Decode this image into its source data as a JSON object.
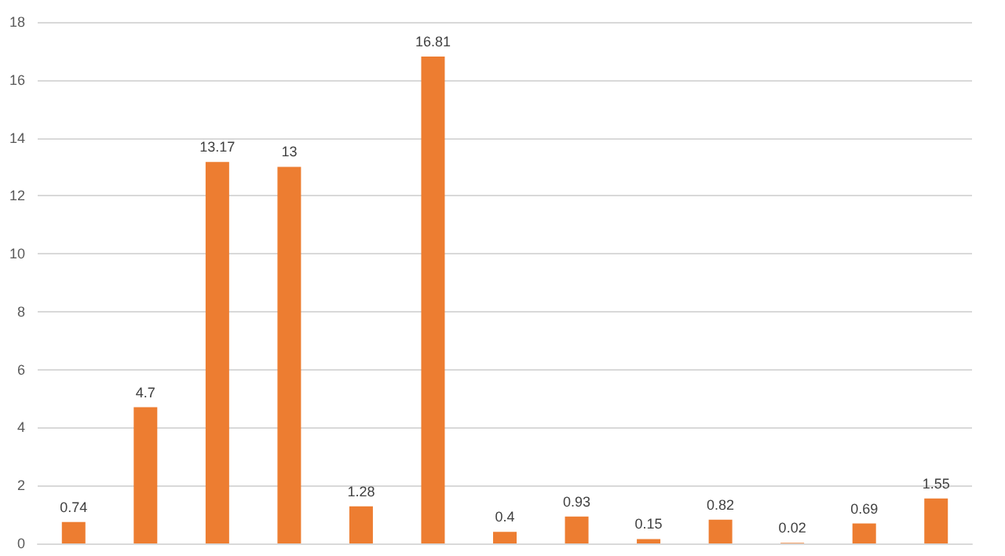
{
  "chart_data": {
    "type": "bar",
    "categories": [
      null,
      null,
      null,
      null,
      null,
      null,
      null,
      null,
      null,
      null,
      null,
      null,
      null
    ],
    "values": [
      0.74,
      4.7,
      13.17,
      13,
      1.28,
      16.81,
      0.4,
      0.93,
      0.15,
      0.82,
      0.02,
      0.69,
      1.55
    ],
    "color": "#ed7d31",
    "ylim": [
      0,
      18
    ],
    "yticks": [
      0,
      2,
      4,
      6,
      8,
      10,
      12,
      14,
      16,
      18
    ],
    "grid": "y",
    "data_labels": true
  }
}
